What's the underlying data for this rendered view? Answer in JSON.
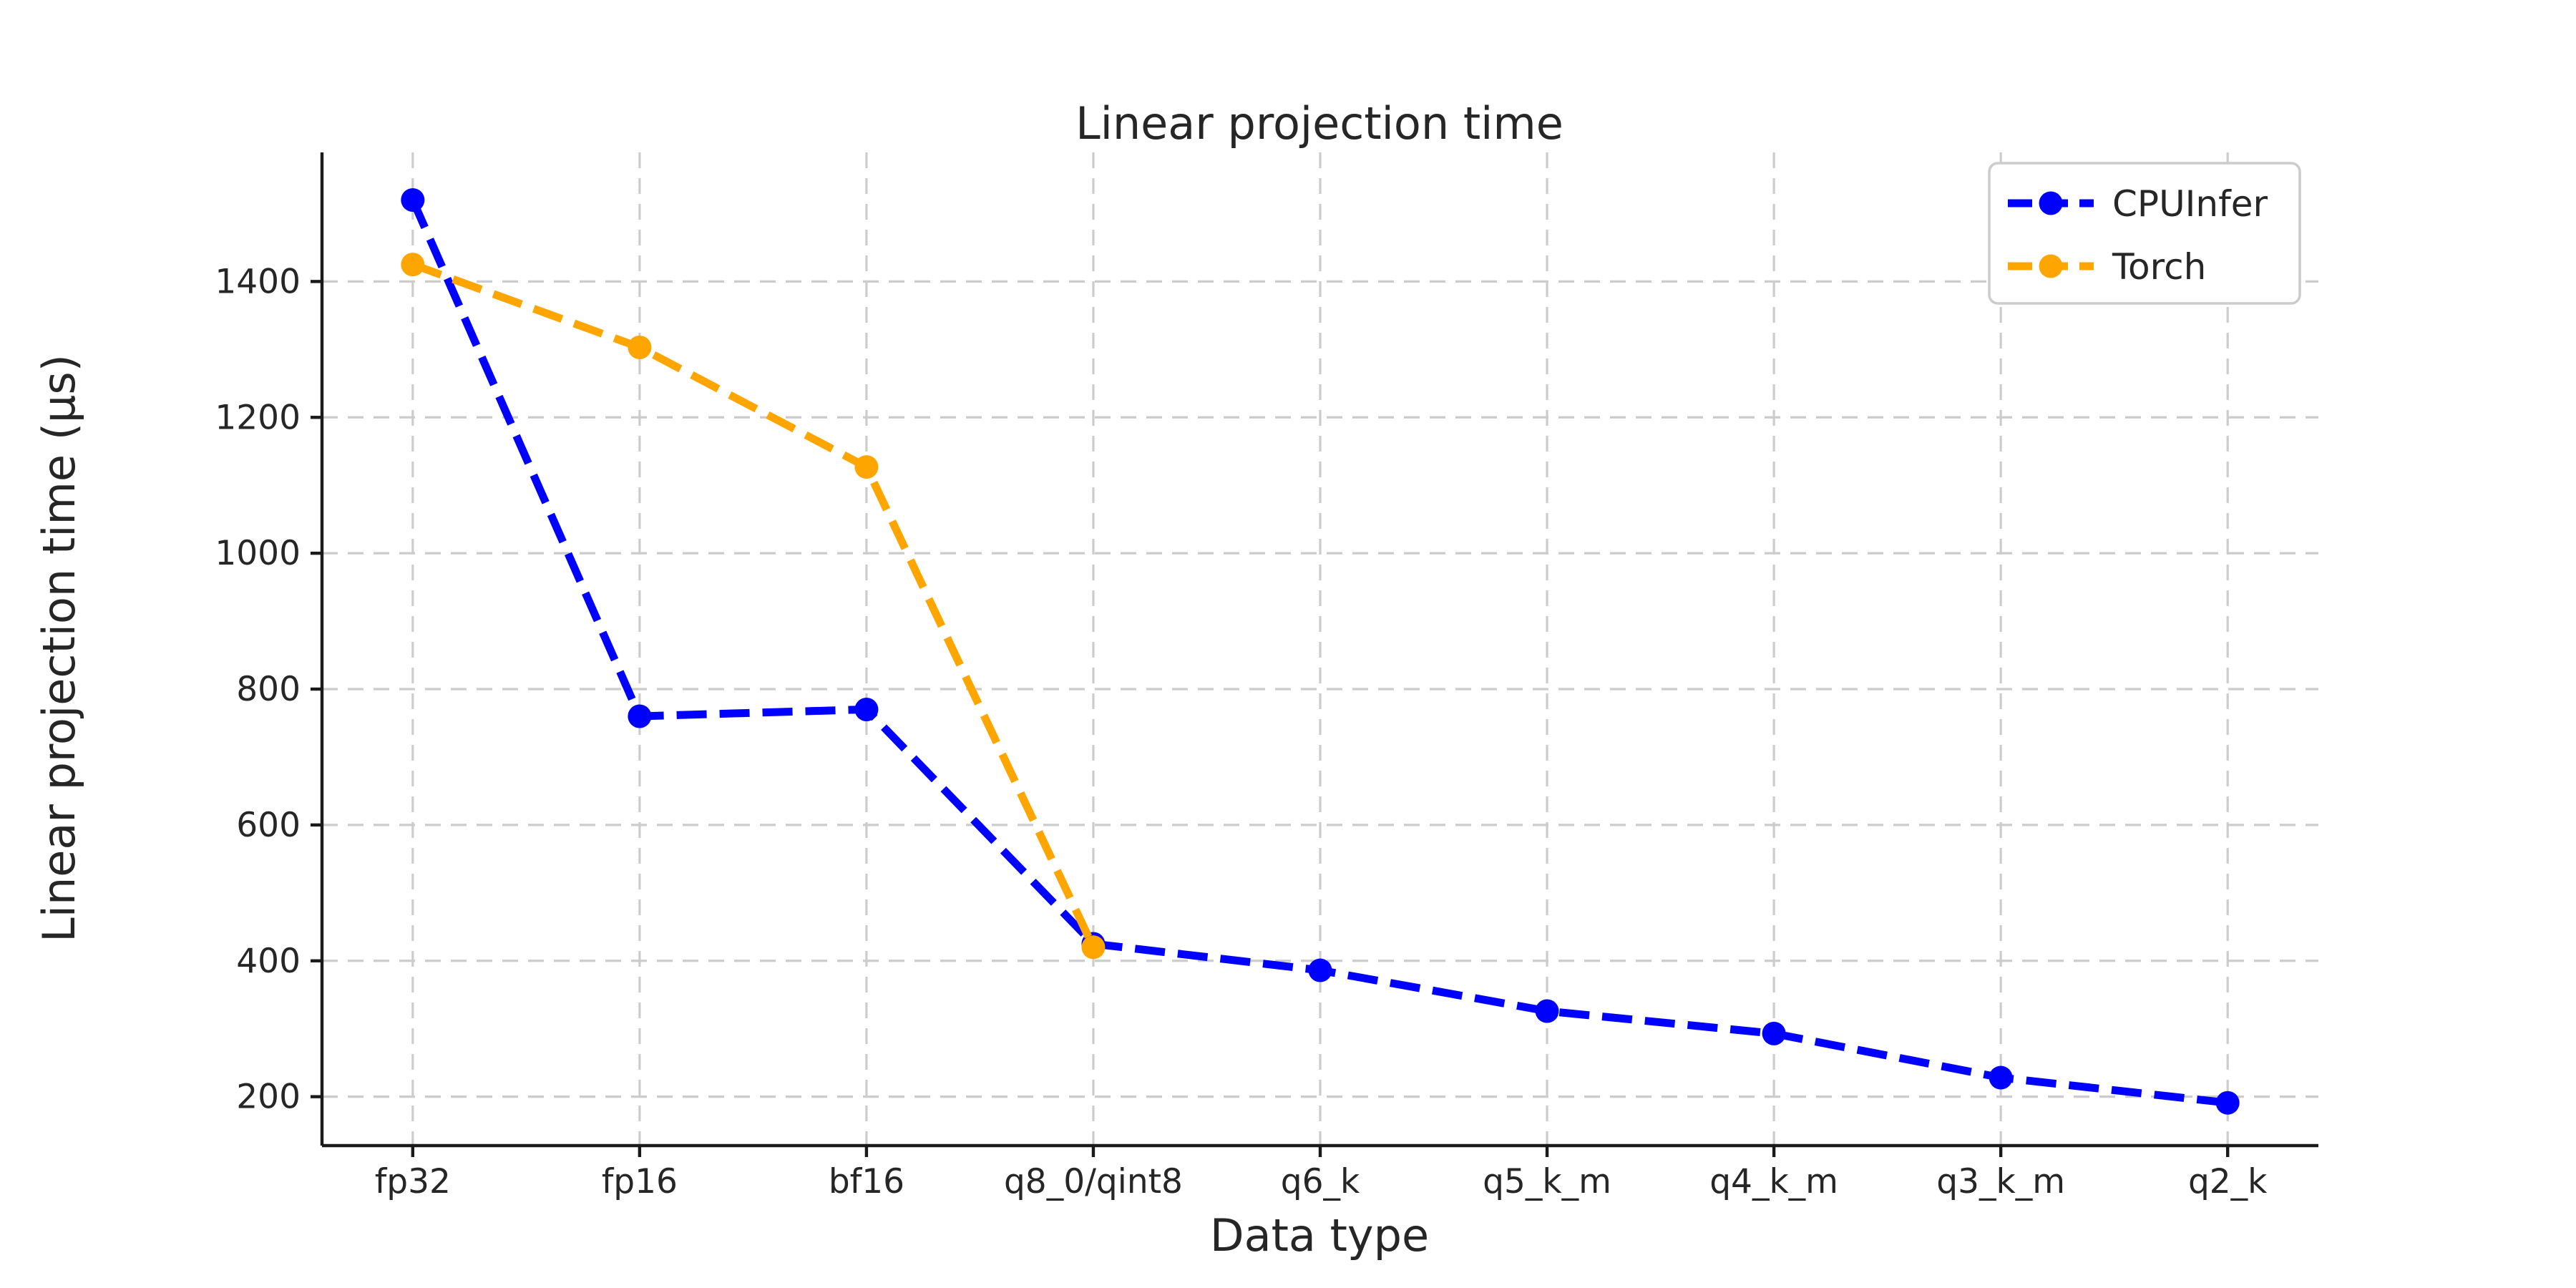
{
  "page": {
    "background": "#ffffff"
  },
  "chart_data": {
    "type": "line",
    "title": "Linear projection time",
    "xlabel": "Data type",
    "ylabel": "Linear projection time (μs)",
    "categories": [
      "fp32",
      "fp16",
      "bf16",
      "q8_0/qint8",
      "q6_k",
      "q5_k_m",
      "q4_k_m",
      "q3_k_m",
      "q2_k"
    ],
    "series": [
      {
        "name": "CPUInfer",
        "color": "#0000ff",
        "line_style": "dashed",
        "marker": "circle",
        "values": [
          1520,
          760,
          770,
          425,
          386,
          326,
          293,
          228,
          191
        ]
      },
      {
        "name": "Torch",
        "color": "#ffa500",
        "line_style": "dashed",
        "marker": "circle",
        "values": [
          1425,
          1303,
          1127,
          420,
          null,
          null,
          null,
          null,
          null
        ]
      }
    ],
    "yticks": [
      200,
      400,
      600,
      800,
      1000,
      1200,
      1400
    ],
    "ylim": [
      128,
      1590
    ],
    "xlim_margin_categories": 0.4,
    "grid": "both",
    "grid_color": "#cccccc",
    "axis_color": "#1a1a1a",
    "text_color": "#262626",
    "legend_position": "upper right",
    "legend_border_color": "#cccccc",
    "legend_background": "#ffffff"
  }
}
